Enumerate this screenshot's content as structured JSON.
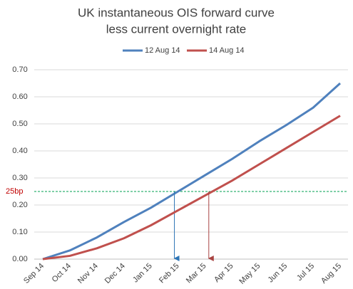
{
  "chart_data": {
    "type": "line",
    "title": [
      "UK instantaneous OIS forward curve",
      "less current overnight rate"
    ],
    "categories": [
      "Sep 14",
      "Oct 14",
      "Nov 14",
      "Dec 14",
      "Jan 15",
      "Feb 15",
      "Mar 15",
      "Apr 15",
      "May 15",
      "Jun 15",
      "Jul 15",
      "Aug 15"
    ],
    "series": [
      {
        "name": "12 Aug 14",
        "color": "#4f81bd",
        "values": [
          0,
          0.032,
          0.08,
          0.137,
          0.19,
          0.25,
          0.31,
          0.37,
          0.435,
          0.495,
          0.56,
          0.65
        ]
      },
      {
        "name": "14 Aug 14",
        "color": "#c0504d",
        "values": [
          0,
          0.012,
          0.04,
          0.077,
          0.125,
          0.18,
          0.235,
          0.29,
          0.35,
          0.41,
          0.47,
          0.53
        ]
      }
    ],
    "ylim": [
      0,
      0.7
    ],
    "yticks": [
      {
        "value": 0,
        "label": "0.00"
      },
      {
        "value": 0.1,
        "label": "0.10"
      },
      {
        "value": 0.2,
        "label": "0.20"
      },
      {
        "value": 0.3,
        "label": "0.30"
      },
      {
        "value": 0.4,
        "label": "0.40"
      },
      {
        "value": 0.5,
        "label": "0.50"
      },
      {
        "value": 0.6,
        "label": "0.60"
      },
      {
        "value": 0.7,
        "label": "0.70"
      }
    ],
    "grid": true,
    "legend": "top",
    "reference_line": {
      "value": 0.25,
      "label": "25bp",
      "color": "#00a050",
      "label_color": "#c00000"
    }
  }
}
